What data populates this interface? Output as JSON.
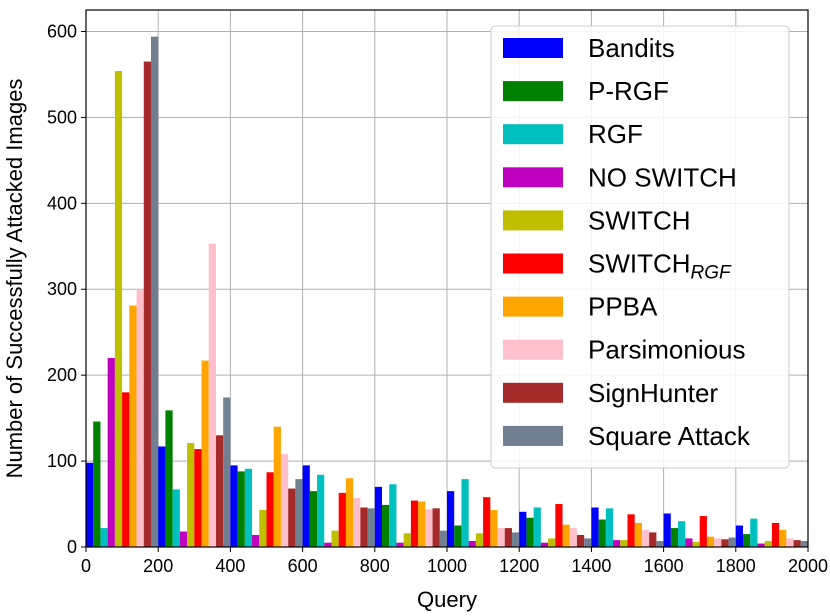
{
  "chart_data": {
    "type": "bar",
    "xlabel": "Query",
    "ylabel": "Number of Successfully Attacked Images",
    "xlim": [
      0,
      2000
    ],
    "ylim": [
      0,
      625
    ],
    "xticks": [
      0,
      200,
      400,
      600,
      800,
      1000,
      1200,
      1400,
      1600,
      1800,
      2000
    ],
    "yticks": [
      0,
      100,
      200,
      300,
      400,
      500,
      600
    ],
    "grid": true,
    "legend_position": "top-right",
    "bin_starts": [
      0,
      200,
      400,
      600,
      800,
      1000,
      1200,
      1400,
      1600,
      1800
    ],
    "bin_width": 200,
    "series": [
      {
        "name": "Bandits",
        "color": "#0000ff",
        "values": [
          98,
          117,
          95,
          95,
          70,
          65,
          41,
          46,
          39,
          25
        ]
      },
      {
        "name": "P-RGF",
        "color": "#008000",
        "values": [
          146,
          159,
          88,
          65,
          49,
          25,
          34,
          32,
          22,
          15
        ]
      },
      {
        "name": "RGF",
        "color": "#00bfbf",
        "values": [
          22,
          67,
          91,
          84,
          73,
          79,
          46,
          45,
          30,
          33
        ]
      },
      {
        "name": "NO SWITCH",
        "color": "#bf00bf",
        "values": [
          220,
          18,
          14,
          5,
          5,
          7,
          5,
          8,
          10,
          4
        ]
      },
      {
        "name": "SWITCH",
        "color": "#bfbf00",
        "values": [
          554,
          121,
          43,
          19,
          16,
          16,
          10,
          8,
          6,
          7
        ]
      },
      {
        "name": "SWITCH",
        "name_sub": "RGF",
        "color": "#ff0000",
        "values": [
          180,
          114,
          87,
          63,
          54,
          58,
          50,
          38,
          36,
          28
        ]
      },
      {
        "name": "PPBA",
        "color": "#ffa500",
        "values": [
          281,
          217,
          140,
          80,
          53,
          43,
          26,
          28,
          12,
          20
        ]
      },
      {
        "name": "Parsimonious",
        "color": "#ffc0cb",
        "values": [
          299,
          353,
          108,
          57,
          44,
          22,
          22,
          20,
          10,
          10
        ]
      },
      {
        "name": "SignHunter",
        "color": "#a52a2a",
        "values": [
          565,
          130,
          68,
          46,
          45,
          22,
          14,
          17,
          9,
          8
        ]
      },
      {
        "name": "Square Attack",
        "color": "#708090",
        "values": [
          594,
          174,
          79,
          45,
          19,
          17,
          10,
          7,
          11,
          7
        ]
      }
    ]
  }
}
